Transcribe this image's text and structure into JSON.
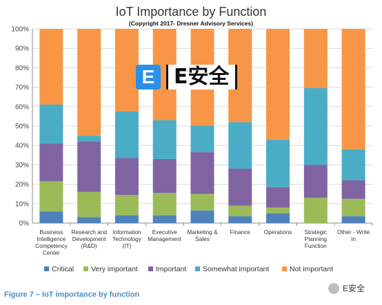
{
  "chart_data": {
    "type": "bar",
    "stacked": true,
    "title": "IoT Importance by Function",
    "subtitle": "(Copyright 2017- Dresner Advisory Services)",
    "categories": [
      "Business Intelligence Competency Center",
      "Research and Development (R&D)",
      "Information Technology (IT)",
      "Executive Management",
      "Marketing & Sales",
      "Finance",
      "Operations",
      "Strategic Planning Function",
      "Other - Write In"
    ],
    "category_lines": [
      [
        "Business",
        "Intelligence",
        "Competency",
        "Center"
      ],
      [
        "Research and",
        "Development",
        "(R&D)"
      ],
      [
        "Information",
        "Technology",
        "(IT)"
      ],
      [
        "Executive",
        "Management"
      ],
      [
        "Marketing &",
        "Sales"
      ],
      [
        "Finance"
      ],
      [
        "Operations"
      ],
      [
        "Strategic",
        "Planning",
        "Function"
      ],
      [
        "Other - Write",
        "In"
      ]
    ],
    "series": [
      {
        "name": "Critical",
        "color": "#4f81bd",
        "values": [
          6,
          3,
          4,
          4,
          6.5,
          3.5,
          5,
          0,
          3.5
        ]
      },
      {
        "name": "Very important",
        "color": "#9bbb59",
        "values": [
          15.5,
          13,
          10.5,
          11.5,
          8.5,
          5.5,
          3,
          13,
          9
        ]
      },
      {
        "name": "Important",
        "color": "#8064a2",
        "values": [
          19.5,
          26,
          19,
          17.5,
          21.5,
          19,
          10.5,
          17,
          9.5
        ]
      },
      {
        "name": "Somewhat important",
        "color": "#4bacc6",
        "values": [
          20,
          3,
          24,
          20,
          13.5,
          24,
          24.5,
          39.5,
          16
        ]
      },
      {
        "name": "Not important",
        "color": "#f79646",
        "values": [
          39,
          55,
          42.5,
          47,
          50,
          48,
          57,
          30.5,
          62
        ]
      }
    ],
    "yticks": [
      "0%",
      "10%",
      "20%",
      "30%",
      "40%",
      "50%",
      "60%",
      "70%",
      "80%",
      "90%",
      "100%"
    ],
    "ylim": [
      0,
      100
    ],
    "grid": true,
    "legend": "bottom"
  },
  "caption": "Figure 7 – IoT importance by function",
  "watermark": {
    "logo_letter": "E",
    "logo_text": "E安全"
  },
  "wechat_label": "E安全"
}
